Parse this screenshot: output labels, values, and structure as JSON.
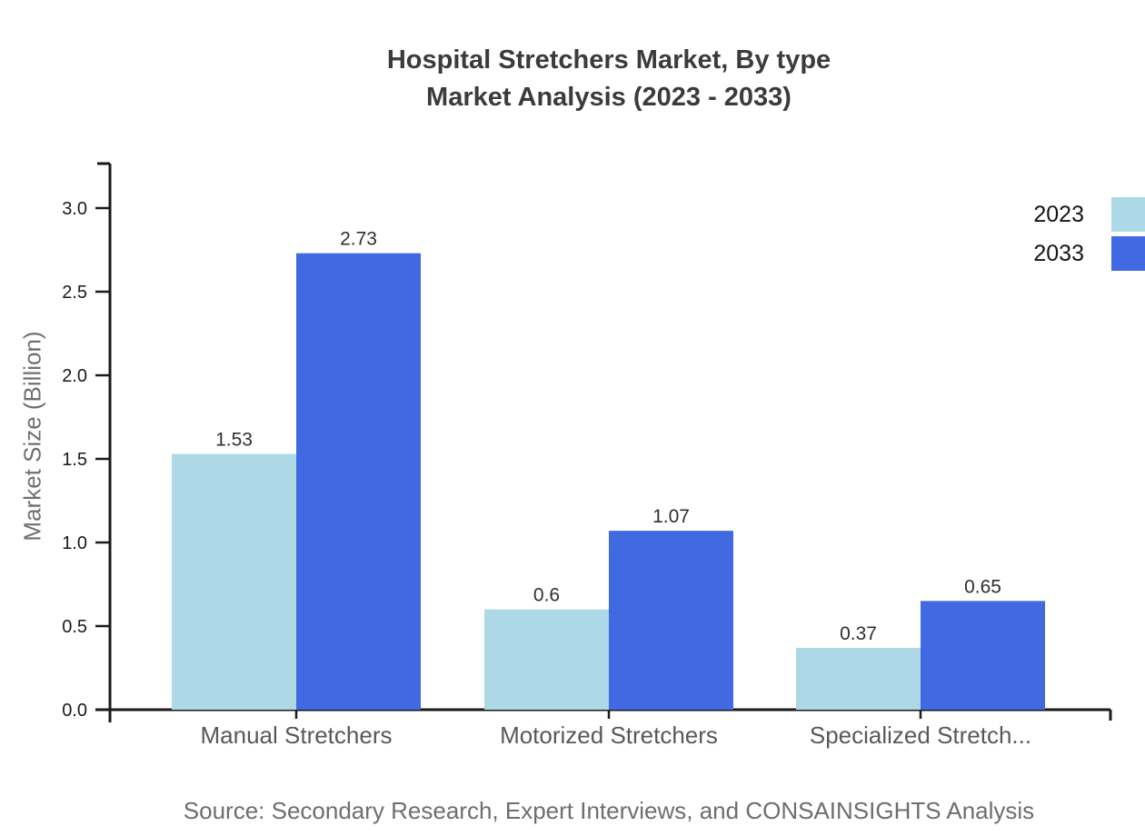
{
  "title": {
    "line1": "Hospital Stretchers Market, By type",
    "line2": "Market Analysis (2023 - 2033)"
  },
  "chart_data": {
    "type": "bar",
    "title_lines": [
      "Hospital Stretchers Market, By type",
      "Market Analysis (2023 - 2033)"
    ],
    "categories": [
      "Manual Stretchers",
      "Motorized Stretchers",
      "Specialized Stretch..."
    ],
    "series": [
      {
        "name": "2023",
        "color": "#ADD8E6",
        "values": [
          1.53,
          0.6,
          0.37
        ]
      },
      {
        "name": "2033",
        "color": "#4169E1",
        "values": [
          2.73,
          1.07,
          0.65
        ]
      }
    ],
    "xlabel": "",
    "ylabel": "Market Size (Billion)",
    "yticks": [
      "0.0",
      "0.5",
      "1.0",
      "1.5",
      "2.0",
      "2.5",
      "3.0"
    ],
    "ylim": [
      0,
      3.26
    ],
    "grid": false,
    "legend_position": "top-right",
    "value_labels_shown": true
  },
  "source": "Source: Secondary Research, Expert Interviews, and CONSAINSIGHTS Analysis",
  "colors": {
    "series_2023": "#ADD8E6",
    "series_2033": "#4169E1",
    "axis": "#1a1a1a",
    "tick_label": "#1a1a1a",
    "category_label": "#595959",
    "value_label": "#2f2f2f",
    "title_text": "#3b3b3b",
    "muted_text": "#6e6e6e"
  }
}
